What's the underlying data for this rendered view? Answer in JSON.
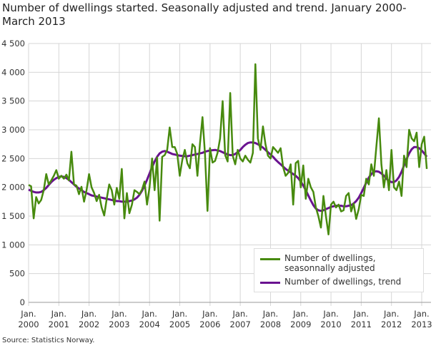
{
  "chart_data": {
    "type": "line",
    "title": "Number of dwellings started. Seasonally adjusted and trend. January 2000-March 2013",
    "source": "Source: Statistics Norway.",
    "xlabel": "",
    "ylabel": "",
    "ylim": [
      0,
      4500
    ],
    "yticks": [
      "0",
      "500",
      "1 000",
      "1 500",
      "2 000",
      "2 500",
      "3 000",
      "3 500",
      "4 000",
      "4 500"
    ],
    "xticks": [
      {
        "month": "Jan.",
        "year": "2000"
      },
      {
        "month": "Jan.",
        "year": "2001"
      },
      {
        "month": "Jan.",
        "year": "2002"
      },
      {
        "month": "Jan.",
        "year": "2003"
      },
      {
        "month": "Jan.",
        "year": "2004"
      },
      {
        "month": "Jan.",
        "year": "2005"
      },
      {
        "month": "Jan.",
        "year": "2006"
      },
      {
        "month": "Jan.",
        "year": "2007"
      },
      {
        "month": "Jan.",
        "year": "2008"
      },
      {
        "month": "Jan.",
        "year": "2009"
      },
      {
        "month": "Jan.",
        "year": "2010"
      },
      {
        "month": "Jan.",
        "year": "2011"
      },
      {
        "month": "Jan.",
        "year": "2012"
      },
      {
        "month": "Jan.",
        "year": "2013"
      }
    ],
    "x_start": "2000-01",
    "x_end": "2013-03",
    "grid": true,
    "legend_position": "bottom-right",
    "series": [
      {
        "name": "Number of dwellings, seasonnally adjusted",
        "color": "#478a0e",
        "values": [
          2040,
          2020,
          1460,
          1830,
          1720,
          1780,
          1950,
          2230,
          2050,
          2120,
          2200,
          2300,
          2150,
          2200,
          2150,
          2220,
          2120,
          2620,
          2050,
          2030,
          1880,
          2010,
          1750,
          1950,
          2230,
          2000,
          1900,
          1760,
          1870,
          1650,
          1510,
          1800,
          2050,
          1950,
          1700,
          1990,
          1800,
          2320,
          1460,
          1900,
          1550,
          1700,
          1950,
          1920,
          1880,
          1960,
          2100,
          1700,
          2000,
          2500,
          1950,
          2520,
          1420,
          2530,
          2560,
          2650,
          3040,
          2700,
          2700,
          2580,
          2200,
          2480,
          2650,
          2420,
          2330,
          2750,
          2700,
          2200,
          2750,
          3220,
          2580,
          1590,
          2680,
          2430,
          2460,
          2600,
          2850,
          3500,
          2560,
          2450,
          3640,
          2550,
          2400,
          2650,
          2500,
          2450,
          2550,
          2480,
          2430,
          2600,
          4140,
          2850,
          2650,
          3060,
          2750,
          2550,
          2500,
          2700,
          2650,
          2600,
          2680,
          2350,
          2200,
          2250,
          2400,
          1700,
          2420,
          2460,
          2000,
          2380,
          1800,
          2150,
          2000,
          1920,
          1650,
          1500,
          1300,
          1850,
          1500,
          1180,
          1700,
          1750,
          1650,
          1700,
          1580,
          1600,
          1850,
          1900,
          1580,
          1720,
          1450,
          1620,
          1870,
          1850,
          2150,
          2050,
          2400,
          2200,
          2700,
          3200,
          2400,
          2000,
          2300,
          1950,
          2650,
          2000,
          1950,
          2100,
          1850,
          2550,
          2350,
          3000,
          2850,
          2800,
          2950,
          2350,
          2750,
          2880,
          2320
        ]
      },
      {
        "name": "Number of dwellings, trend",
        "color": "#6a1290",
        "values": [
          1960,
          1940,
          1920,
          1910,
          1910,
          1920,
          1950,
          1990,
          2040,
          2090,
          2130,
          2160,
          2180,
          2190,
          2180,
          2160,
          2130,
          2090,
          2050,
          2010,
          1980,
          1950,
          1920,
          1900,
          1880,
          1860,
          1850,
          1840,
          1830,
          1820,
          1810,
          1800,
          1790,
          1780,
          1770,
          1760,
          1760,
          1750,
          1750,
          1750,
          1760,
          1770,
          1790,
          1820,
          1870,
          1940,
          2030,
          2130,
          2240,
          2350,
          2450,
          2530,
          2590,
          2620,
          2630,
          2620,
          2600,
          2580,
          2570,
          2560,
          2550,
          2545,
          2540,
          2540,
          2550,
          2560,
          2570,
          2580,
          2590,
          2600,
          2620,
          2630,
          2640,
          2645,
          2650,
          2640,
          2630,
          2610,
          2590,
          2570,
          2560,
          2560,
          2580,
          2610,
          2650,
          2700,
          2740,
          2770,
          2780,
          2780,
          2770,
          2750,
          2720,
          2690,
          2650,
          2610,
          2570,
          2530,
          2480,
          2440,
          2400,
          2360,
          2320,
          2290,
          2260,
          2230,
          2200,
          2160,
          2100,
          2030,
          1950,
          1860,
          1770,
          1690,
          1630,
          1600,
          1590,
          1600,
          1620,
          1640,
          1660,
          1670,
          1680,
          1680,
          1680,
          1670,
          1670,
          1680,
          1690,
          1720,
          1760,
          1820,
          1900,
          1990,
          2080,
          2170,
          2230,
          2270,
          2280,
          2270,
          2240,
          2200,
          2150,
          2110,
          2090,
          2090,
          2120,
          2180,
          2270,
          2380,
          2490,
          2590,
          2660,
          2700,
          2700,
          2680,
          2640,
          2590,
          2530
        ]
      }
    ]
  }
}
